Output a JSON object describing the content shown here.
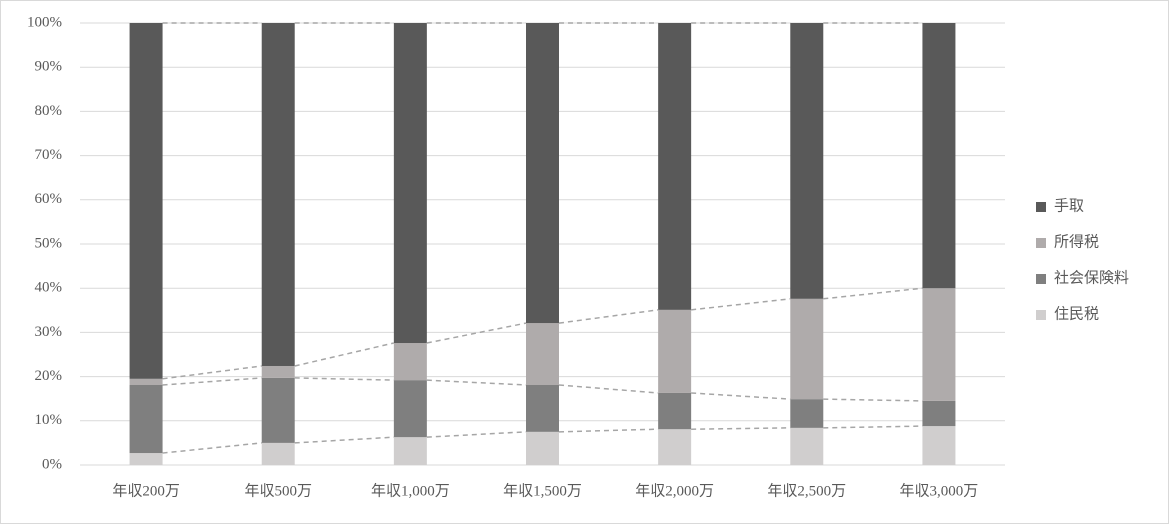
{
  "chart_data": {
    "type": "stacked_bar_100",
    "categories": [
      "年収200万",
      "年収500万",
      "年収1,000万",
      "年収1,500万",
      "年収2,000万",
      "年収2,500万",
      "年収3,000万"
    ],
    "series": [
      {
        "name": "住民税",
        "color": "#d0cece",
        "values": [
          2.7,
          5.0,
          6.3,
          7.5,
          8.1,
          8.4,
          8.8
        ]
      },
      {
        "name": "社会保険料",
        "color": "#7f7f7f",
        "values": [
          15.4,
          14.7,
          12.9,
          10.6,
          8.2,
          6.5,
          5.7
        ]
      },
      {
        "name": "所得税",
        "color": "#afabab",
        "values": [
          1.4,
          2.7,
          8.4,
          14.0,
          18.8,
          22.7,
          25.5
        ]
      },
      {
        "name": "手取",
        "color": "#595959",
        "values": [
          80.5,
          77.6,
          72.4,
          67.9,
          64.9,
          62.4,
          60.0
        ]
      }
    ],
    "ylim": [
      0,
      100
    ],
    "yticks": [
      {
        "value": 0,
        "label": "0%"
      },
      {
        "value": 10,
        "label": "10%"
      },
      {
        "value": 20,
        "label": "20%"
      },
      {
        "value": 30,
        "label": "30%"
      },
      {
        "value": 40,
        "label": "40%"
      },
      {
        "value": 50,
        "label": "50%"
      },
      {
        "value": 60,
        "label": "60%"
      },
      {
        "value": 70,
        "label": "70%"
      },
      {
        "value": 80,
        "label": "80%"
      },
      {
        "value": 90,
        "label": "90%"
      },
      {
        "value": 100,
        "label": "100%"
      }
    ],
    "grid": true,
    "legend": "right"
  }
}
